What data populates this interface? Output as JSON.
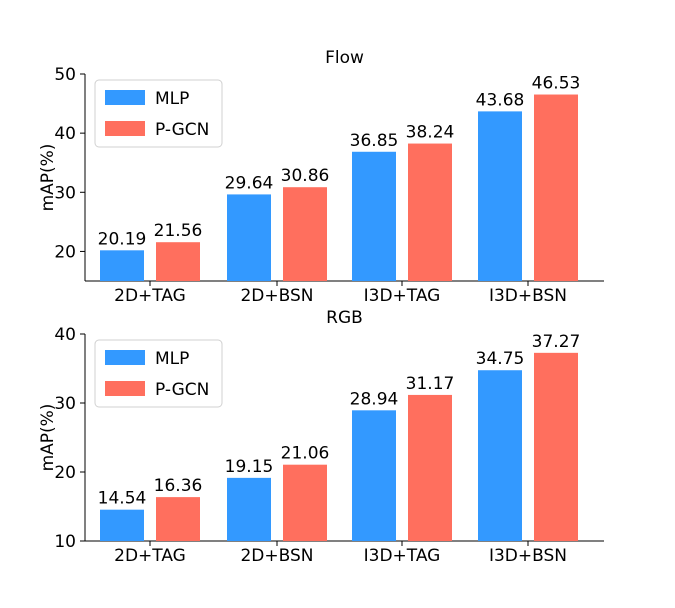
{
  "chart_data": [
    {
      "type": "bar",
      "title": "Flow",
      "ylabel": "mAP(%)",
      "xlabel": "",
      "categories": [
        "2D+TAG",
        "2D+BSN",
        "I3D+TAG",
        "I3D+BSN"
      ],
      "ylim": [
        15,
        50
      ],
      "yticks": [
        20,
        30,
        40,
        50
      ],
      "legend_position": "top-left",
      "grid": false,
      "series": [
        {
          "name": "MLP",
          "color": "#3399ff",
          "values": [
            20.19,
            29.64,
            36.85,
            43.68
          ],
          "labels": [
            "20.19",
            "29.64",
            "36.85",
            "43.68"
          ]
        },
        {
          "name": "P-GCN",
          "color": "#ff6f5e",
          "values": [
            21.56,
            30.86,
            38.24,
            46.53
          ],
          "labels": [
            "21.56",
            "30.86",
            "38.24",
            "46.53"
          ]
        }
      ]
    },
    {
      "type": "bar",
      "title": "RGB",
      "ylabel": "mAP(%)",
      "xlabel": "",
      "categories": [
        "2D+TAG",
        "2D+BSN",
        "I3D+TAG",
        "I3D+BSN"
      ],
      "ylim": [
        10,
        40
      ],
      "yticks": [
        10,
        20,
        30,
        40
      ],
      "legend_position": "top-left",
      "grid": false,
      "series": [
        {
          "name": "MLP",
          "color": "#3399ff",
          "values": [
            14.54,
            19.15,
            28.94,
            34.75
          ],
          "labels": [
            "14.54",
            "19.15",
            "28.94",
            "34.75"
          ]
        },
        {
          "name": "P-GCN",
          "color": "#ff6f5e",
          "values": [
            16.36,
            21.06,
            31.17,
            37.27
          ],
          "labels": [
            "16.36",
            "21.06",
            "31.17",
            "37.27"
          ]
        }
      ]
    }
  ]
}
